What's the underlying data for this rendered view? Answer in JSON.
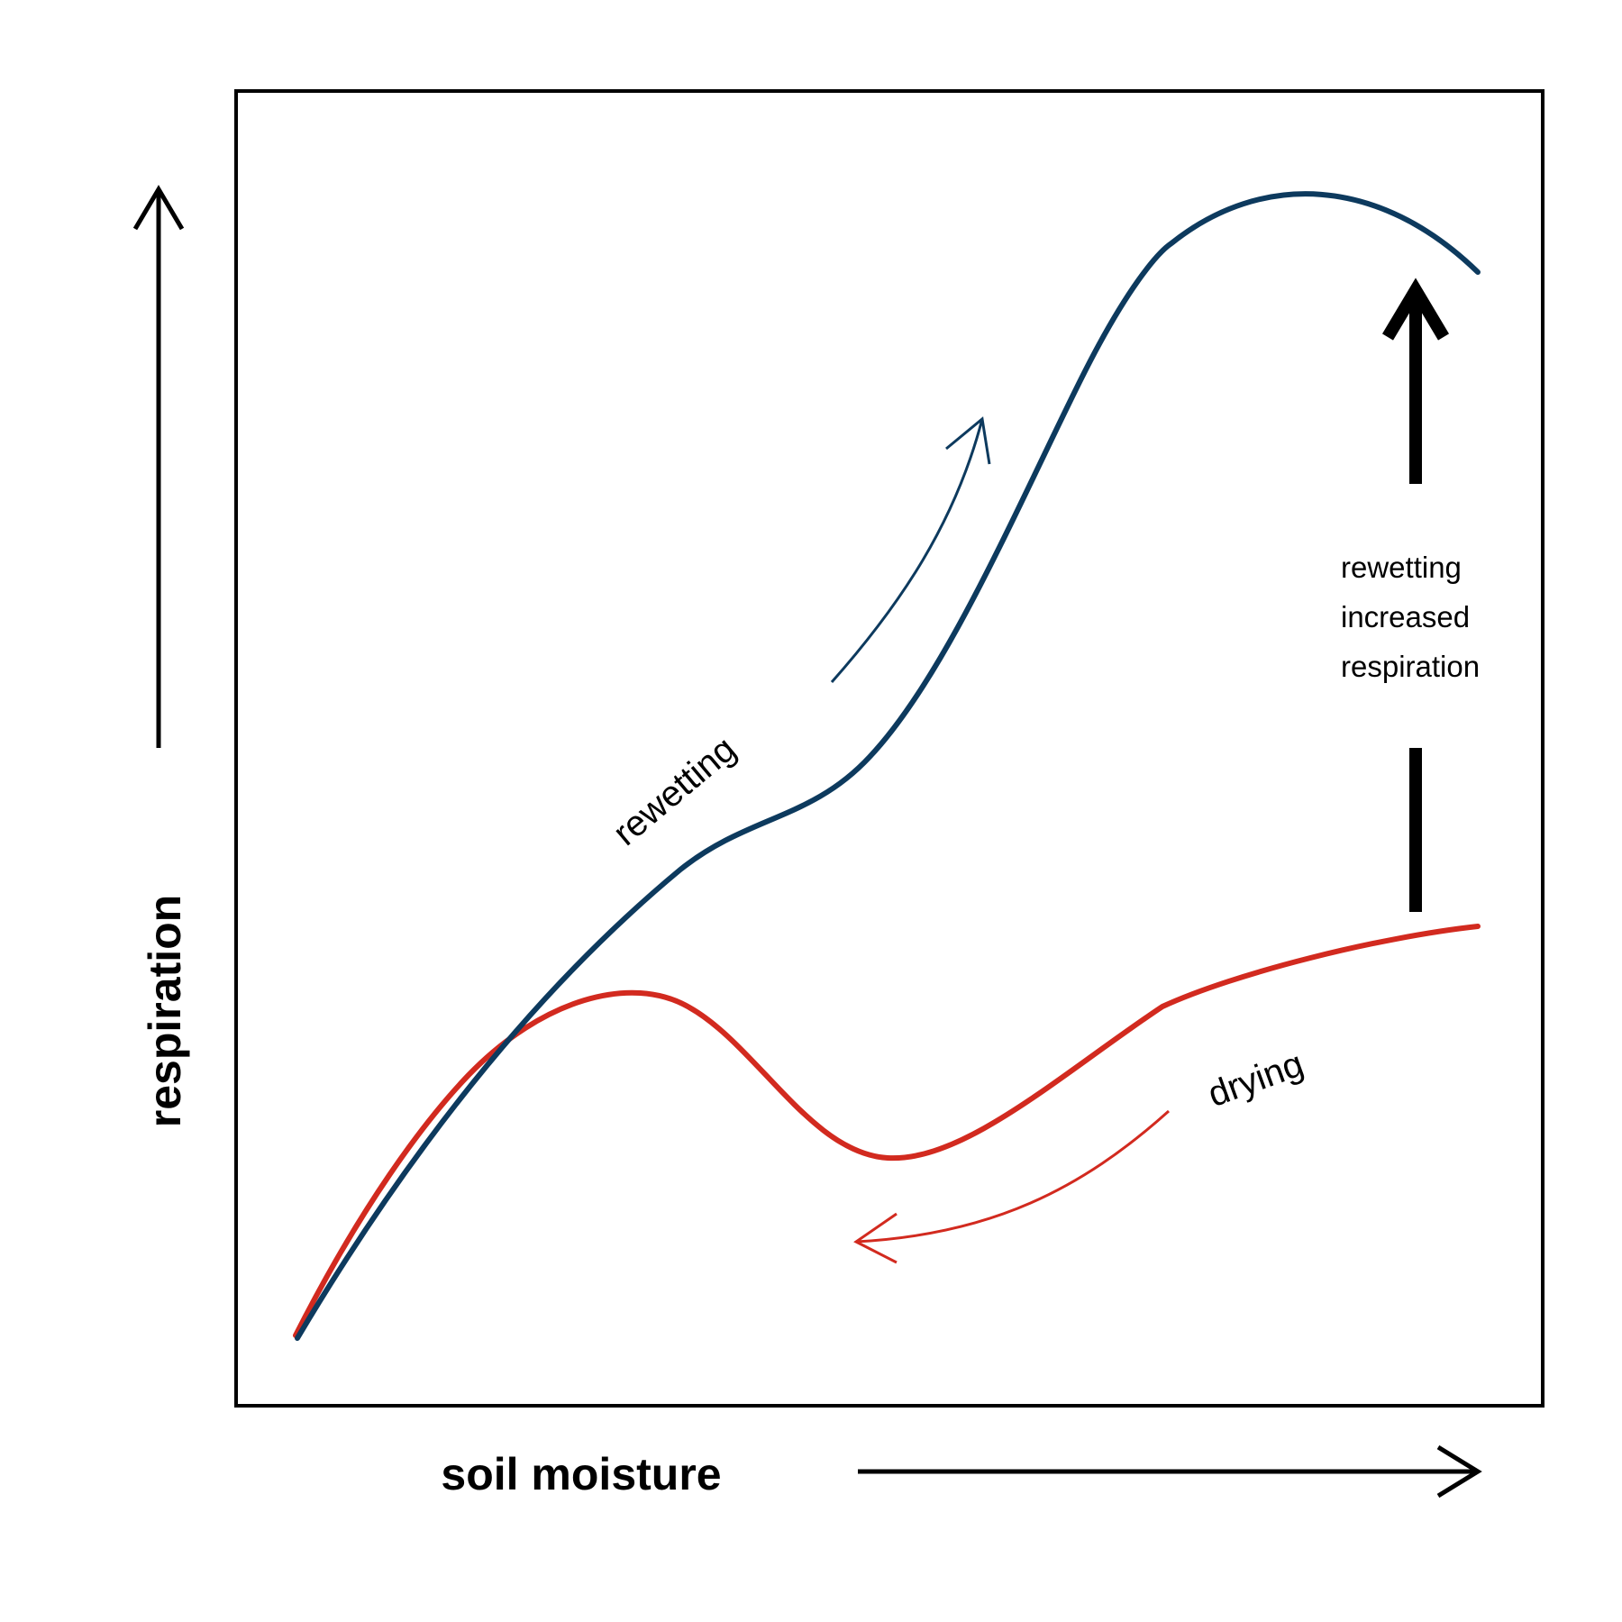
{
  "axes": {
    "x_title": "soil moisture",
    "y_title": "respiration"
  },
  "curves": {
    "rewetting": {
      "label": "rewetting",
      "color": "#0d3a5e"
    },
    "drying": {
      "label": "drying",
      "color": "#d22a1f"
    }
  },
  "annotation": {
    "lines": [
      "rewetting",
      "increased",
      "respiration"
    ]
  },
  "colors": {
    "frame": "#000000",
    "axis_arrows": "#000000",
    "increase_arrow": "#000000"
  },
  "icons": {
    "x_axis_direction": "arrow-right-icon",
    "y_axis_direction": "arrow-up-icon",
    "increase_marker": "arrow-up-icon"
  }
}
